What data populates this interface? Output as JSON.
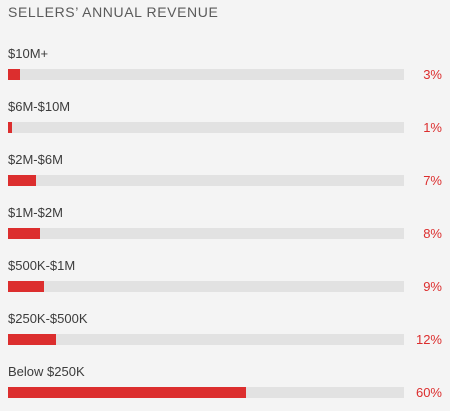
{
  "chart_data": {
    "type": "bar",
    "orientation": "horizontal",
    "title": "SELLERS’ ANNUAL REVENUE",
    "categories": [
      "$10M+",
      "$6M-$10M",
      "$2M-$6M",
      "$1M-$2M",
      "$500K-$1M",
      "$250K-$500K",
      "Below $250K"
    ],
    "values": [
      3,
      1,
      7,
      8,
      9,
      12,
      60
    ],
    "value_labels": [
      "3%",
      "1%",
      "7%",
      "8%",
      "9%",
      "12%",
      "60%"
    ],
    "xlim": [
      0,
      100
    ],
    "grid": false,
    "legend": "none"
  },
  "colors": {
    "bar": "#dc2e2e",
    "track": "#e2e2e2",
    "label": "#3c3c3c",
    "value": "#dc2e2e",
    "background": "#f4f4f4"
  }
}
